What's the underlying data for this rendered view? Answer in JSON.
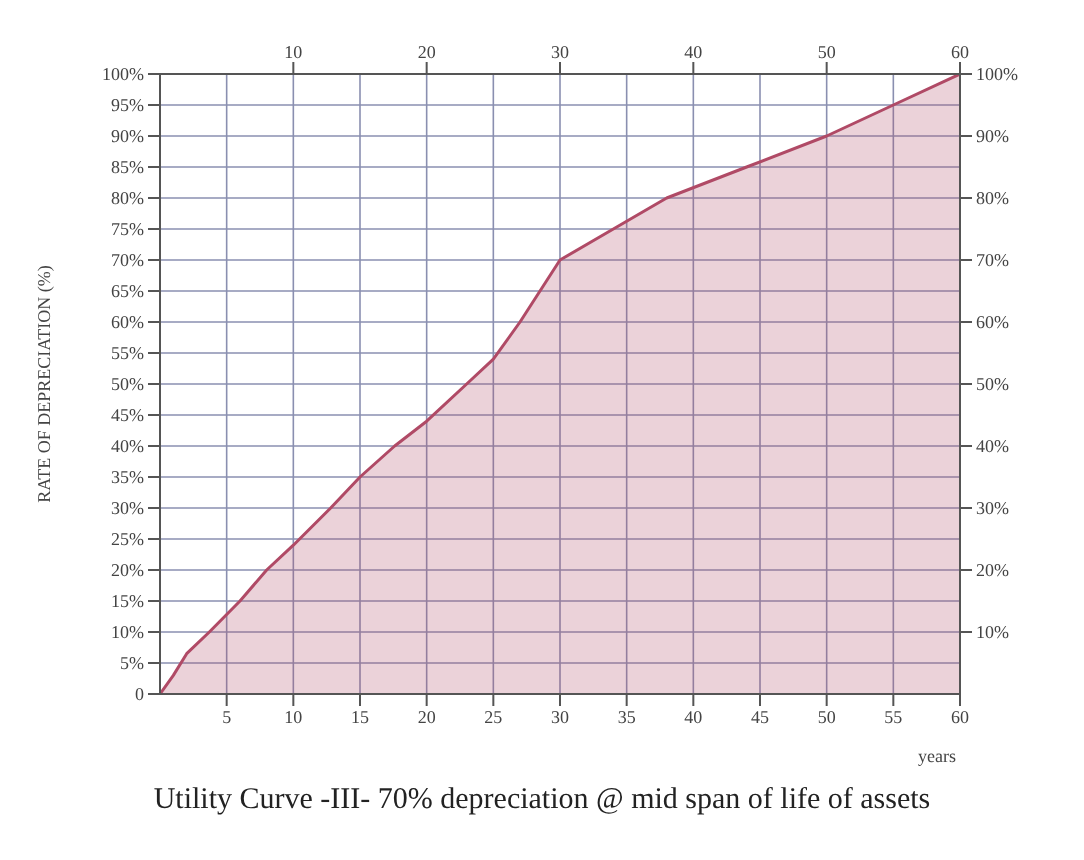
{
  "chart_data": {
    "type": "area",
    "title": "Utility Curve -III- 70% depreciation @ mid span of life of assets",
    "ylabel": "RATE OF DEPRECIATION (%)",
    "xlabel": "years",
    "x": [
      0,
      1,
      2,
      3.7,
      6,
      8,
      10,
      12.8,
      15,
      17.6,
      20,
      23,
      25,
      27,
      30,
      34,
      38,
      44,
      50,
      55,
      60
    ],
    "series": [
      {
        "color": "#b04a66",
        "values": [
          0,
          3,
          6.5,
          10,
          15,
          20,
          24,
          30,
          35,
          40,
          44,
          50,
          54,
          60,
          70,
          75,
          80,
          85,
          90,
          95,
          100
        ]
      }
    ],
    "xlim": [
      0,
      60
    ],
    "xticks": [
      5,
      10,
      15,
      20,
      25,
      30,
      35,
      40,
      45,
      50,
      55,
      60
    ],
    "x2lim": [
      0,
      60
    ],
    "x2ticks": [
      10,
      20,
      30,
      40,
      50,
      60
    ],
    "ylim": [
      0,
      100
    ],
    "yticks": [
      0,
      {
        "value": 5,
        "label": "5%"
      },
      {
        "value": 10,
        "label": "10%"
      },
      {
        "value": 15,
        "label": "15%"
      },
      {
        "value": 20,
        "label": "20%"
      },
      {
        "value": 25,
        "label": "25%"
      },
      {
        "value": 30,
        "label": "30%"
      },
      {
        "value": 35,
        "label": "35%"
      },
      {
        "value": 40,
        "label": "40%"
      },
      {
        "value": 45,
        "label": "45%"
      },
      {
        "value": 50,
        "label": "50%"
      },
      {
        "value": 55,
        "label": "55%"
      },
      {
        "value": 60,
        "label": "60%"
      },
      {
        "value": 65,
        "label": "65%"
      },
      {
        "value": 70,
        "label": "70%"
      },
      {
        "value": 75,
        "label": "75%"
      },
      {
        "value": 80,
        "label": "80%"
      },
      {
        "value": 85,
        "label": "85%"
      },
      {
        "value": 90,
        "label": "90%"
      },
      {
        "value": 95,
        "label": "95%"
      },
      {
        "value": 100,
        "label": "100%"
      }
    ],
    "y2lim": [
      0,
      100
    ],
    "y2ticks": [
      {
        "value": 10,
        "label": "10%"
      },
      {
        "value": 20,
        "label": "20%"
      },
      {
        "value": 30,
        "label": "30%"
      },
      {
        "value": 40,
        "label": "40%"
      },
      {
        "value": 50,
        "label": "50%"
      },
      {
        "value": 60,
        "label": "60%"
      },
      {
        "value": 70,
        "label": "70%"
      },
      {
        "value": 80,
        "label": "80%"
      },
      {
        "value": 90,
        "label": "90%"
      },
      {
        "value": 100,
        "label": "100%"
      }
    ],
    "grid": true
  }
}
